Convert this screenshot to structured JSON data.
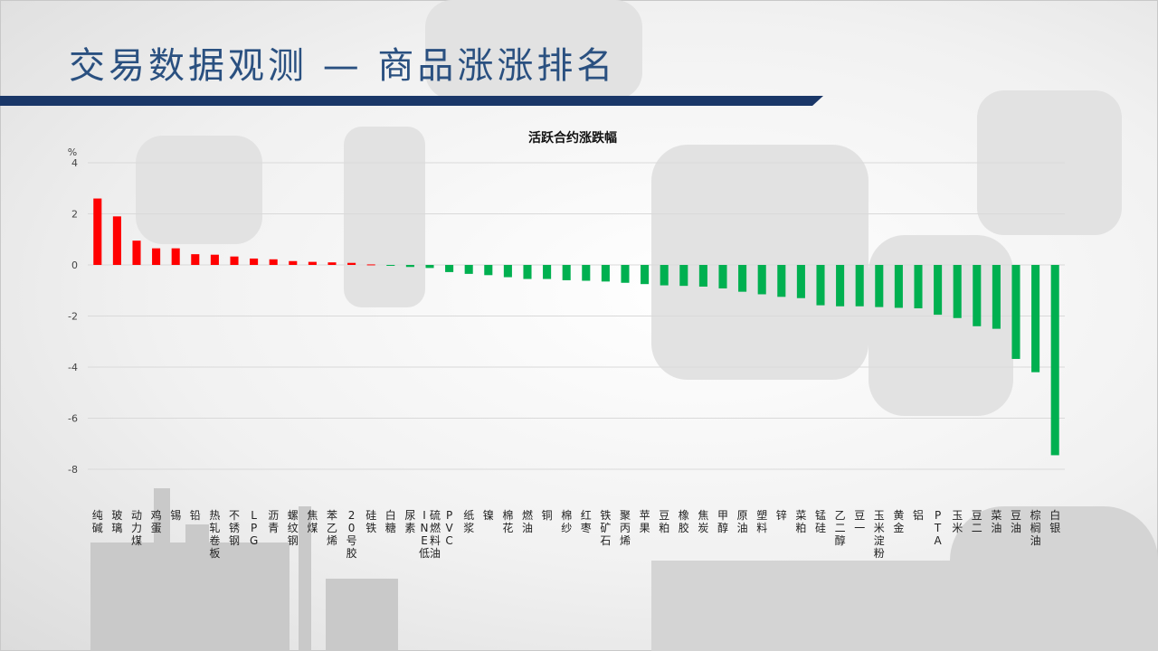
{
  "slide": {
    "title": "交易数据观测 — 商品涨涨排名"
  },
  "colors": {
    "positive": "#ff0000",
    "negative": "#00b050",
    "title": "#2a5080",
    "rule": "#1a3768"
  },
  "chart_data": {
    "type": "bar",
    "title": "活跃合约涨跌幅",
    "ylabel": "%",
    "xlabel": "",
    "ylim": [
      -8,
      4
    ],
    "yticks": [
      4,
      2,
      0,
      -2,
      -4,
      -6,
      -8
    ],
    "grid": true,
    "categories": [
      "纯碱",
      "玻璃",
      "动力煤",
      "鸡蛋",
      "锡",
      "铅",
      "热轧卷板",
      "不锈钢",
      "LPG",
      "沥青",
      "螺纹钢",
      "焦煤",
      "苯乙烯",
      "20号胶",
      "硅铁",
      "白糖",
      "尿素",
      "INE低硫燃料油",
      "PVC",
      "纸浆",
      "镍",
      "棉花",
      "燃油",
      "铜",
      "棉纱",
      "红枣",
      "铁矿石",
      "聚丙烯",
      "苹果",
      "豆粕",
      "橡胶",
      "焦炭",
      "甲醇",
      "原油",
      "塑料",
      "锌",
      "菜粕",
      "锰硅",
      "乙二醇",
      "豆一",
      "玉米淀粉",
      "黄金",
      "铝",
      "PTA",
      "玉米",
      "豆二",
      "菜油",
      "豆油",
      "棕榈油",
      "白银"
    ],
    "values": [
      2.6,
      1.9,
      0.95,
      0.65,
      0.65,
      0.42,
      0.4,
      0.33,
      0.25,
      0.22,
      0.15,
      0.12,
      0.1,
      0.08,
      0.02,
      -0.03,
      -0.08,
      -0.12,
      -0.28,
      -0.35,
      -0.4,
      -0.48,
      -0.55,
      -0.55,
      -0.6,
      -0.62,
      -0.65,
      -0.7,
      -0.75,
      -0.8,
      -0.82,
      -0.85,
      -0.92,
      -1.05,
      -1.15,
      -1.25,
      -1.3,
      -1.58,
      -1.62,
      -1.62,
      -1.65,
      -1.68,
      -1.7,
      -1.95,
      -2.08,
      -2.4,
      -2.5,
      -3.68,
      -4.2,
      -7.45
    ]
  }
}
